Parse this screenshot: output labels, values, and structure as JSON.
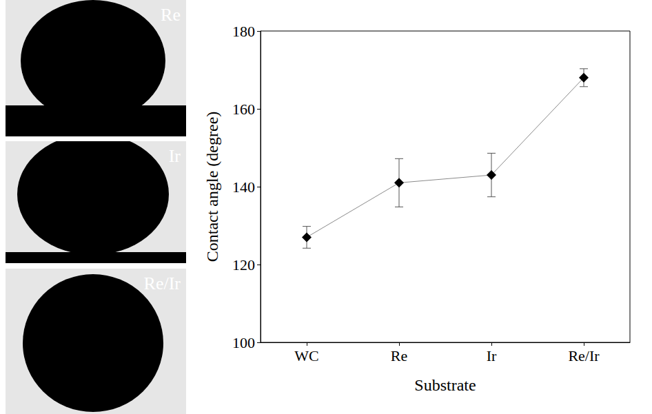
{
  "chart_data": {
    "type": "line",
    "x_label": "Substrate",
    "y_label": "Contact angle (degree)",
    "categories": [
      "WC",
      "Re",
      "Ir",
      "Re/Ir"
    ],
    "values": [
      127,
      141,
      143,
      168
    ],
    "errors": [
      2.8,
      6.2,
      5.6,
      2.3
    ],
    "color": "#000000",
    "marker": "diamond",
    "line_style": "solid",
    "ylim": [
      100,
      180
    ],
    "yticks": [
      100,
      120,
      140,
      160,
      180
    ],
    "grid": false
  },
  "photos": [
    {
      "label": "Re"
    },
    {
      "label": "Ir"
    },
    {
      "label": "Re/Ir"
    }
  ]
}
